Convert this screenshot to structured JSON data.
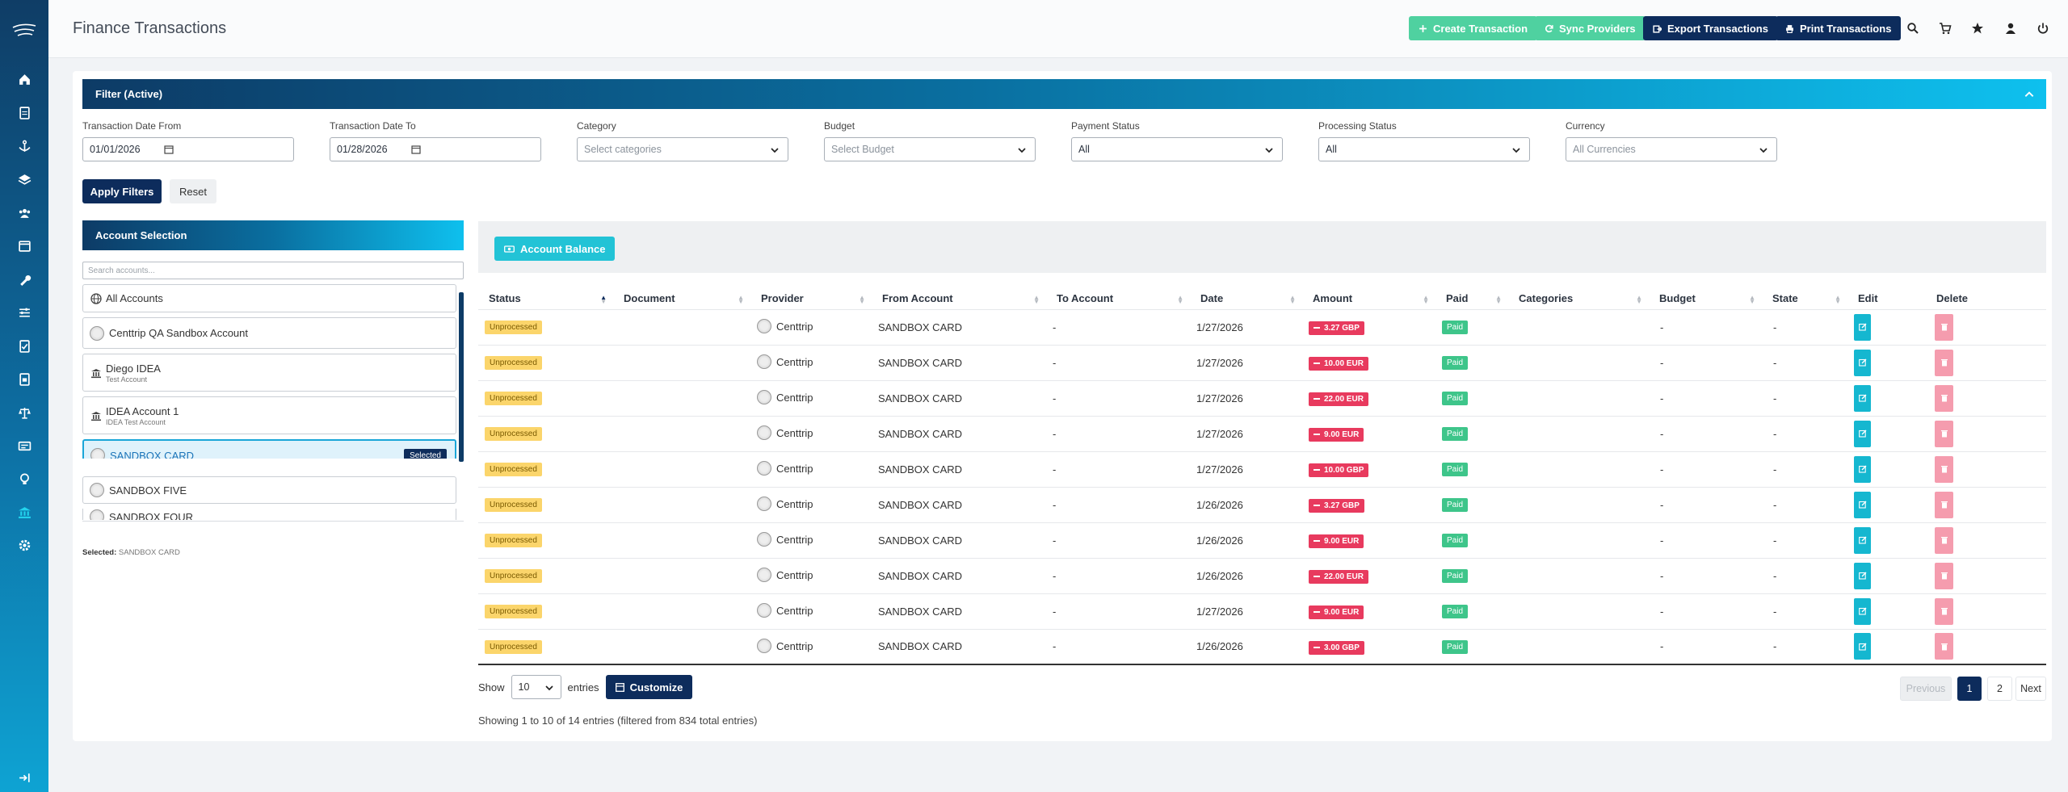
{
  "header": {
    "title": "Finance Transactions",
    "actions": [
      {
        "label": "Create Transaction",
        "icon": "plus-icon",
        "color": "#4fd1a0"
      },
      {
        "label": "Sync Providers",
        "icon": "sync-icon",
        "color": "#4fd1a0"
      },
      {
        "label": "Export Transactions",
        "icon": "export-icon",
        "color": "#0d2c5c"
      },
      {
        "label": "Print Transactions",
        "icon": "print-icon",
        "color": "#0d2c5c"
      }
    ]
  },
  "filter": {
    "title": "Filter (Active)",
    "date_from_label": "Transaction Date From",
    "date_from": "01/01/2026",
    "date_to_label": "Transaction Date To",
    "date_to": "01/28/2026",
    "category_label": "Category",
    "category_placeholder": "Select categories",
    "budget_label": "Budget",
    "budget_placeholder": "Select Budget",
    "payment_label": "Payment Status",
    "payment_value": "All",
    "processing_label": "Processing Status",
    "processing_value": "All",
    "currency_label": "Currency",
    "currency_placeholder": "All Currencies",
    "apply": "Apply Filters",
    "reset": "Reset"
  },
  "accounts": {
    "title": "Account Selection",
    "search_placeholder": "Search accounts...",
    "items": [
      {
        "name": "All Accounts",
        "sub": "",
        "icon": "globe-icon"
      },
      {
        "name": "Centtrip QA Sandbox Account",
        "sub": "",
        "icon": "provider-logo-icon"
      },
      {
        "name": "Diego IDEA",
        "sub": "Test Account",
        "icon": "bank-icon"
      },
      {
        "name": "IDEA Account 1",
        "sub": "IDEA Test Account",
        "icon": "bank-icon"
      },
      {
        "name": "SANDBOX CARD",
        "sub": "",
        "icon": "provider-logo-icon",
        "selected": true
      },
      {
        "name": "SANDBOX FIVE",
        "sub": "",
        "icon": "provider-logo-icon"
      },
      {
        "name": "SANDBOX FOUR",
        "sub": "",
        "icon": "provider-logo-icon"
      }
    ],
    "selected_badge": "Selected",
    "selected_label": "Selected:",
    "selected_value": "SANDBOX CARD"
  },
  "balance_button": "Account Balance",
  "table": {
    "columns": [
      "Status",
      "Document",
      "Provider",
      "From Account",
      "To Account",
      "Date",
      "Amount",
      "Paid",
      "Categories",
      "Budget",
      "State",
      "Edit",
      "Delete"
    ],
    "rows": [
      {
        "status": "Unprocessed",
        "provider": "Centtrip",
        "from": "SANDBOX CARD",
        "to": "-",
        "date": "1/27/2026",
        "amount": "3.27 GBP",
        "paid": "Paid",
        "budget": "-",
        "state": "-"
      },
      {
        "status": "Unprocessed",
        "provider": "Centtrip",
        "from": "SANDBOX CARD",
        "to": "-",
        "date": "1/27/2026",
        "amount": "10.00 EUR",
        "paid": "Paid",
        "budget": "-",
        "state": "-"
      },
      {
        "status": "Unprocessed",
        "provider": "Centtrip",
        "from": "SANDBOX CARD",
        "to": "-",
        "date": "1/27/2026",
        "amount": "22.00 EUR",
        "paid": "Paid",
        "budget": "-",
        "state": "-"
      },
      {
        "status": "Unprocessed",
        "provider": "Centtrip",
        "from": "SANDBOX CARD",
        "to": "-",
        "date": "1/27/2026",
        "amount": "9.00 EUR",
        "paid": "Paid",
        "budget": "-",
        "state": "-"
      },
      {
        "status": "Unprocessed",
        "provider": "Centtrip",
        "from": "SANDBOX CARD",
        "to": "-",
        "date": "1/27/2026",
        "amount": "10.00 GBP",
        "paid": "Paid",
        "budget": "-",
        "state": "-"
      },
      {
        "status": "Unprocessed",
        "provider": "Centtrip",
        "from": "SANDBOX CARD",
        "to": "-",
        "date": "1/26/2026",
        "amount": "3.27 GBP",
        "paid": "Paid",
        "budget": "-",
        "state": "-"
      },
      {
        "status": "Unprocessed",
        "provider": "Centtrip",
        "from": "SANDBOX CARD",
        "to": "-",
        "date": "1/26/2026",
        "amount": "9.00 EUR",
        "paid": "Paid",
        "budget": "-",
        "state": "-"
      },
      {
        "status": "Unprocessed",
        "provider": "Centtrip",
        "from": "SANDBOX CARD",
        "to": "-",
        "date": "1/26/2026",
        "amount": "22.00 EUR",
        "paid": "Paid",
        "budget": "-",
        "state": "-"
      },
      {
        "status": "Unprocessed",
        "provider": "Centtrip",
        "from": "SANDBOX CARD",
        "to": "-",
        "date": "1/27/2026",
        "amount": "9.00 EUR",
        "paid": "Paid",
        "budget": "-",
        "state": "-"
      },
      {
        "status": "Unprocessed",
        "provider": "Centtrip",
        "from": "SANDBOX CARD",
        "to": "-",
        "date": "1/26/2026",
        "amount": "3.00 GBP",
        "paid": "Paid",
        "budget": "-",
        "state": "-"
      }
    ]
  },
  "footer": {
    "show": "Show",
    "length": "10",
    "entries": "entries",
    "customize": "Customize",
    "info": "Showing 1 to 10 of 14 entries (filtered from 834 total entries)",
    "previous": "Previous",
    "pages": [
      "1",
      "2"
    ],
    "next": "Next"
  },
  "colors": {
    "navy": "#0d2c5c",
    "green": "#4fd1a0",
    "cyan": "#22c3d6",
    "danger": "#e83a5e",
    "warning": "#fbd56b"
  }
}
